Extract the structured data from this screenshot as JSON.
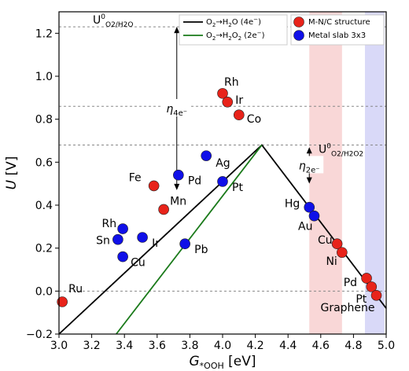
{
  "chart_data": {
    "type": "scatter",
    "xlabel": "G*OOH [eV]",
    "xlabel_main": "G",
    "xlabel_sub": "*OOH",
    "xlabel_unit": " [eV]",
    "ylabel": "U [V]",
    "ylabel_main": "U",
    "ylabel_unit": " [V]",
    "xlim": [
      3.0,
      5.0
    ],
    "ylim": [
      -0.2,
      1.3
    ],
    "xticks": [
      "3.0",
      "3.2",
      "3.4",
      "3.6",
      "3.8",
      "4.0",
      "4.2",
      "4.4",
      "4.6",
      "4.8",
      "5.0"
    ],
    "yticks": [
      "-0.2",
      "0.0",
      "0.2",
      "0.4",
      "0.6",
      "0.8",
      "1.0",
      "1.2"
    ],
    "lines": [
      {
        "name": "O2→H2O (4e⁻)",
        "color": "#000000",
        "points": [
          [
            3.0,
            -0.2
          ],
          [
            4.24,
            0.68
          ],
          [
            5.0,
            -0.08
          ]
        ]
      },
      {
        "name": "O2→H2O2 (2e⁻)",
        "color": "#1a7a1a",
        "points": [
          [
            3.35,
            -0.2
          ],
          [
            4.24,
            0.68
          ]
        ]
      }
    ],
    "reference_lines": [
      {
        "y": 1.23,
        "label_main": "U",
        "label_sup": "0",
        "label_sub": "O2/H2O"
      },
      {
        "y": 0.86
      },
      {
        "y": 0.68,
        "label_main": "U",
        "label_sup": "0",
        "label_sub": "O2/H2O2"
      },
      {
        "y": 0.0
      }
    ],
    "bands": [
      {
        "x0": 4.53,
        "x1": 4.73,
        "color": "#f7c9c9"
      },
      {
        "x0": 4.87,
        "x1": 4.99,
        "color": "#ccccf5"
      }
    ],
    "arrows": [
      {
        "x": 3.72,
        "y0": 1.23,
        "y1": 0.47,
        "label_main": "η",
        "label_sub": "4e⁻"
      },
      {
        "x": 4.53,
        "y0": 0.67,
        "y1": 0.5,
        "label_main": "η",
        "label_sub": "2e⁻"
      }
    ],
    "series": [
      {
        "name": "M-N/C structure",
        "color": "#e8231a",
        "points": [
          {
            "label": "Ru",
            "x": 3.02,
            "y": -0.05
          },
          {
            "label": "Fe",
            "x": 3.58,
            "y": 0.49
          },
          {
            "label": "Mn",
            "x": 3.64,
            "y": 0.38
          },
          {
            "label": "Rh",
            "x": 4.0,
            "y": 0.92
          },
          {
            "label": "Ir",
            "x": 4.03,
            "y": 0.88
          },
          {
            "label": "Co",
            "x": 4.1,
            "y": 0.82
          },
          {
            "label": "Cu",
            "x": 4.7,
            "y": 0.22
          },
          {
            "label": "Ni",
            "x": 4.73,
            "y": 0.18
          },
          {
            "label": "Pd",
            "x": 4.88,
            "y": 0.06
          },
          {
            "label": "Pt",
            "x": 4.91,
            "y": 0.02
          },
          {
            "label": "Graphene",
            "x": 4.94,
            "y": -0.02
          }
        ]
      },
      {
        "name": "Metal slab 3x3",
        "color": "#1010e8",
        "points": [
          {
            "label": "Rh",
            "x": 3.39,
            "y": 0.29
          },
          {
            "label": "Sn",
            "x": 3.36,
            "y": 0.24
          },
          {
            "label": "Cu",
            "x": 3.39,
            "y": 0.16
          },
          {
            "label": "Ir",
            "x": 3.51,
            "y": 0.25
          },
          {
            "label": "Pd",
            "x": 3.73,
            "y": 0.54
          },
          {
            "label": "Ag",
            "x": 3.9,
            "y": 0.63
          },
          {
            "label": "Pt",
            "x": 4.0,
            "y": 0.51
          },
          {
            "label": "Pb",
            "x": 3.77,
            "y": 0.22
          },
          {
            "label": "Hg",
            "x": 4.53,
            "y": 0.39
          },
          {
            "label": "Au",
            "x": 4.56,
            "y": 0.35
          }
        ]
      }
    ],
    "legend": {
      "placement": "top",
      "line_entries": [
        {
          "main": "O",
          "sub": "2",
          "arrow": "→",
          "main2": "H",
          "sub2": "2",
          "tail": "O (4e",
          "sup": "−",
          "close": ")"
        },
        {
          "main": "O",
          "sub": "2",
          "arrow": "→",
          "main2": "H",
          "sub2": "2",
          "tail": "O",
          "sub3": "2",
          "tail2": " (2e",
          "sup": "−",
          "close": ")"
        }
      ],
      "marker_entries": [
        "M-N/C structure",
        "Metal slab 3x3"
      ]
    }
  }
}
